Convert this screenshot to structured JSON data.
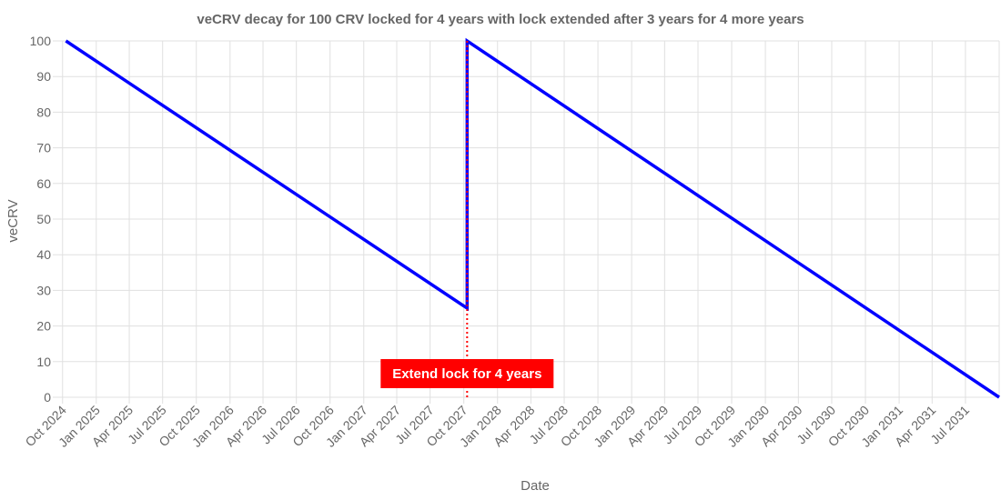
{
  "chart_data": {
    "type": "line",
    "title": "veCRV decay for 100 CRV locked for 4 years with lock extended after 3 years for 4 more years",
    "xlabel": "Date",
    "ylabel": "veCRV",
    "ylim": [
      0,
      100
    ],
    "yticks": [
      0,
      10,
      20,
      30,
      40,
      50,
      60,
      70,
      80,
      90,
      100
    ],
    "xlim": [
      "2024-10-10",
      "2031-10-01"
    ],
    "x_tick_labels": [
      "Oct 2024",
      "Jan 2025",
      "Apr 2025",
      "Jul 2025",
      "Oct 2025",
      "Jan 2026",
      "Apr 2026",
      "Jul 2026",
      "Oct 2026",
      "Jan 2027",
      "Apr 2027",
      "Jul 2027",
      "Oct 2027",
      "Jan 2028",
      "Apr 2028",
      "Jul 2028",
      "Oct 2028",
      "Jan 2029",
      "Apr 2029",
      "Jul 2029",
      "Oct 2029",
      "Jan 2030",
      "Apr 2030",
      "Jul 2030",
      "Oct 2030",
      "Jan 2031",
      "Apr 2031",
      "Jul 2031"
    ],
    "x_tick_dates": [
      "2024-10-01",
      "2025-01-01",
      "2025-04-01",
      "2025-07-01",
      "2025-10-01",
      "2026-01-01",
      "2026-04-01",
      "2026-07-01",
      "2026-10-01",
      "2027-01-01",
      "2027-04-01",
      "2027-07-01",
      "2027-10-01",
      "2028-01-01",
      "2028-04-01",
      "2028-07-01",
      "2028-10-01",
      "2029-01-01",
      "2029-04-01",
      "2029-07-01",
      "2029-10-01",
      "2030-01-01",
      "2030-04-01",
      "2030-07-01",
      "2030-10-01",
      "2031-01-01",
      "2031-04-01",
      "2031-07-01"
    ],
    "grid": true,
    "series": [
      {
        "color": "#0000ff",
        "points": [
          {
            "x": "2024-10-10",
            "y": 100
          },
          {
            "x": "2027-10-10",
            "y": 25
          },
          {
            "x": "2027-10-10",
            "y": 100
          },
          {
            "x": "2031-10-01",
            "y": 0
          }
        ]
      }
    ],
    "annotations": [
      {
        "type": "vertical-line",
        "x": "2027-10-10",
        "color": "#ff0000",
        "style": "dotted",
        "label": "Extend lock for 4 years"
      }
    ]
  }
}
